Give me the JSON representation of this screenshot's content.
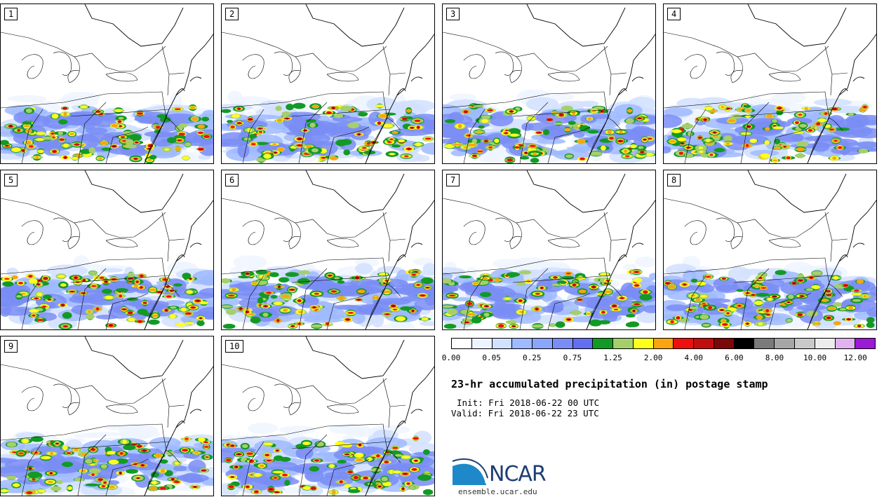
{
  "panels": [
    {
      "label": "1"
    },
    {
      "label": "2"
    },
    {
      "label": "3"
    },
    {
      "label": "4"
    },
    {
      "label": "5"
    },
    {
      "label": "6"
    },
    {
      "label": "7"
    },
    {
      "label": "8"
    },
    {
      "label": "9"
    },
    {
      "label": "10"
    }
  ],
  "colorbar": {
    "colors": [
      "#ffffff",
      "#eef4ff",
      "#d2e1ff",
      "#9fbaff",
      "#8aa6fb",
      "#7a8df5",
      "#636ef0",
      "#129a24",
      "#a6cf6b",
      "#ffff1e",
      "#f9a410",
      "#ee0f0f",
      "#c10e0e",
      "#7c0808",
      "#000000",
      "#7a7a7a",
      "#a6a6a6",
      "#c9c9c9",
      "#ececec",
      "#e0b3f0",
      "#9a1ad6"
    ],
    "tick_labels": [
      "0.00",
      "0.05",
      "0.25",
      "0.75",
      "1.25",
      "2.00",
      "4.00",
      "6.00",
      "8.00",
      "10.00",
      "12.00"
    ]
  },
  "title": "23-hr accumulated precipitation (in) postage stamp",
  "init": "Init: Fri 2018-06-22 00 UTC",
  "valid": "Valid: Fri 2018-06-22 23 UTC",
  "logo": {
    "text": "NCAR",
    "color": "#1d3f73",
    "accent": "#1e88c8"
  },
  "site": "ensemble.ucar.edu"
}
